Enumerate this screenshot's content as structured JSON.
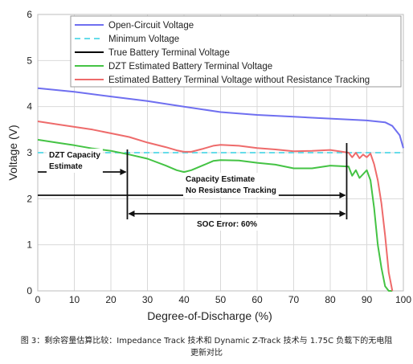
{
  "chart_data": {
    "type": "line",
    "xlabel": "Degree-of-Discharge (%)",
    "ylabel": "Voltage (V)",
    "xlim": [
      0,
      100
    ],
    "ylim": [
      0,
      6
    ],
    "x_ticks": [
      "0",
      "10",
      "20",
      "30",
      "40",
      "50",
      "60",
      "70",
      "80",
      "90",
      "100"
    ],
    "y_ticks": [
      "0",
      "1",
      "2",
      "3",
      "4",
      "5",
      "6"
    ],
    "grid": true,
    "legend_position": "top-right",
    "series": [
      {
        "name": "Open-Circuit Voltage",
        "color": "#6f6ff0",
        "dash": "solid",
        "x": [
          0,
          10,
          20,
          30,
          40,
          50,
          60,
          70,
          80,
          85,
          90,
          95,
          97,
          99,
          100
        ],
        "y": [
          4.4,
          4.32,
          4.22,
          4.12,
          4.0,
          3.88,
          3.82,
          3.78,
          3.74,
          3.72,
          3.7,
          3.66,
          3.58,
          3.38,
          3.1
        ]
      },
      {
        "name": "Minimum Voltage",
        "color": "#66dcea",
        "dash": "dashed",
        "x": [
          0,
          100
        ],
        "y": [
          3.0,
          3.0
        ]
      },
      {
        "name": "True Battery Terminal Voltage",
        "color": "#000000",
        "dash": "solid",
        "x": [],
        "y": []
      },
      {
        "name": "DZT Estimated Battery Terminal Voltage",
        "color": "#44c344",
        "dash": "solid",
        "x": [
          0,
          5,
          10,
          15,
          20,
          25,
          30,
          35,
          38,
          40,
          42,
          45,
          48,
          50,
          55,
          60,
          65,
          70,
          75,
          80,
          85,
          86,
          87,
          88,
          90,
          91,
          92,
          93,
          94,
          95,
          96,
          97
        ],
        "y": [
          3.28,
          3.22,
          3.16,
          3.09,
          3.04,
          2.96,
          2.87,
          2.72,
          2.62,
          2.58,
          2.62,
          2.72,
          2.82,
          2.84,
          2.83,
          2.78,
          2.74,
          2.66,
          2.66,
          2.72,
          2.7,
          2.5,
          2.62,
          2.45,
          2.62,
          2.4,
          1.8,
          1.0,
          0.5,
          0.1,
          0.0,
          0.0
        ]
      },
      {
        "name": "Estimated Battery Terminal Voltage without Resistance Tracking",
        "color": "#ee6b6b",
        "dash": "solid",
        "x": [
          0,
          5,
          10,
          15,
          20,
          25,
          30,
          35,
          38,
          40,
          42,
          45,
          48,
          50,
          55,
          60,
          65,
          70,
          75,
          80,
          85,
          86,
          87,
          88,
          89,
          90,
          91,
          92,
          93,
          94,
          95,
          96,
          97
        ],
        "y": [
          3.68,
          3.62,
          3.56,
          3.5,
          3.42,
          3.34,
          3.22,
          3.12,
          3.05,
          3.02,
          3.02,
          3.08,
          3.15,
          3.17,
          3.15,
          3.1,
          3.07,
          3.03,
          3.04,
          3.06,
          3.0,
          2.9,
          3.0,
          2.88,
          2.96,
          2.9,
          2.98,
          2.75,
          2.4,
          1.9,
          1.2,
          0.4,
          0.0
        ]
      }
    ],
    "annotations": [
      {
        "id": "dzt",
        "lines": [
          "DZT Capacity",
          "Estimate"
        ],
        "x": 24.5
      },
      {
        "id": "nort",
        "lines": [
          "Capacity Estimate",
          "No Resistance Tracking"
        ],
        "x": 84.5
      },
      {
        "id": "soc",
        "text": "SOC Error: 60%"
      }
    ]
  },
  "caption": {
    "line1": "图 3：剩余容量估算比较：Impedance Track 技术和 Dynamic Z-Track 技术与 1.75C 负载下的无电阻",
    "line2": "更新对比"
  }
}
